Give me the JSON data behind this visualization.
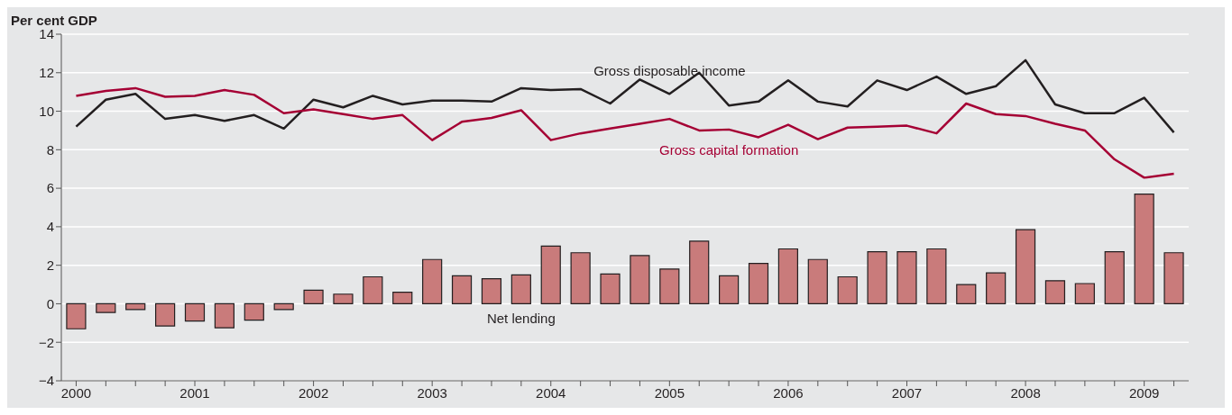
{
  "chart_data": {
    "type": "bar",
    "ylabel": "Per cent GDP",
    "categories": [
      "2000",
      null,
      null,
      null,
      "2001",
      null,
      null,
      null,
      "2002",
      null,
      null,
      null,
      "2003",
      null,
      null,
      null,
      "2004",
      null,
      null,
      null,
      "2005",
      null,
      null,
      null,
      "2006",
      null,
      null,
      null,
      "2007",
      null,
      null,
      null,
      "2008",
      null,
      null,
      null,
      "2009",
      null
    ],
    "series": [
      {
        "name": "Net lending",
        "color": "#c97b7b",
        "values": [
          -1.3,
          -0.45,
          -0.3,
          -1.15,
          -0.9,
          -1.25,
          -0.85,
          -0.3,
          0.7,
          0.5,
          1.4,
          0.6,
          2.3,
          1.45,
          1.3,
          1.5,
          3.0,
          2.65,
          1.55,
          2.5,
          1.8,
          3.25,
          1.45,
          2.1,
          2.85,
          2.3,
          1.4,
          2.7,
          2.7,
          2.85,
          1.0,
          1.6,
          3.85,
          1.2,
          1.05,
          2.7,
          5.7,
          2.65
        ]
      },
      {
        "name": "Gross disposable income",
        "type": "line",
        "color": "#231f20",
        "values": [
          9.2,
          10.6,
          10.9,
          9.6,
          9.8,
          9.5,
          9.8,
          9.1,
          10.6,
          10.2,
          10.8,
          10.35,
          10.55,
          10.55,
          10.5,
          11.2,
          11.1,
          11.15,
          10.4,
          11.65,
          10.9,
          12.0,
          10.3,
          10.5,
          11.6,
          10.5,
          10.25,
          11.6,
          11.1,
          11.8,
          10.9,
          11.3,
          12.65,
          10.35,
          9.9,
          9.9,
          10.7,
          8.9
        ]
      },
      {
        "name": "Gross capital formation",
        "type": "line",
        "color": "#a50034",
        "values": [
          10.8,
          11.05,
          11.2,
          10.75,
          10.8,
          11.1,
          10.85,
          9.9,
          10.1,
          9.85,
          9.6,
          9.8,
          8.5,
          9.45,
          9.65,
          10.05,
          8.5,
          8.85,
          9.1,
          9.35,
          9.6,
          9.0,
          9.05,
          8.65,
          9.3,
          8.55,
          9.15,
          9.2,
          9.25,
          8.85,
          10.4,
          9.85,
          9.75,
          9.35,
          9.0,
          7.5,
          6.55,
          6.75
        ]
      }
    ],
    "ylim": [
      -4,
      14
    ],
    "yticks": [
      -4,
      -2,
      0,
      2,
      4,
      6,
      8,
      10,
      12,
      14
    ],
    "grid": "y",
    "legend": false,
    "marker": "none",
    "line_style": "solid"
  }
}
